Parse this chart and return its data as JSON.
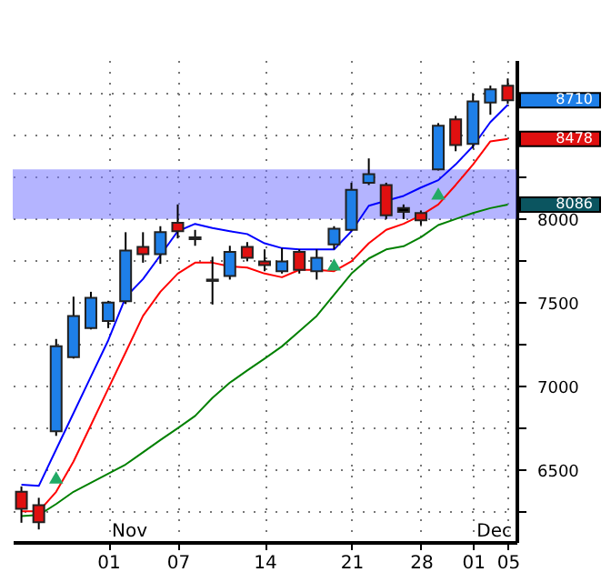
{
  "chart_data": {
    "type": "candlestick",
    "categories": [
      null,
      null,
      null,
      null,
      null,
      "01",
      null,
      null,
      null,
      "07",
      null,
      null,
      null,
      null,
      "14",
      null,
      null,
      null,
      null,
      "21",
      null,
      null,
      null,
      "28",
      null,
      null,
      "01",
      null,
      "05"
    ],
    "ohlc": [
      [
        6370,
        6402,
        6185,
        6268
      ],
      [
        6290,
        6334,
        6145,
        6188
      ],
      [
        6731,
        7283,
        6704,
        7239
      ],
      [
        7174,
        7536,
        7166,
        7421
      ],
      [
        7348,
        7565,
        7340,
        7529
      ],
      [
        7391,
        7511,
        7348,
        7500
      ],
      [
        7508,
        7921,
        7492,
        7812
      ],
      [
        7834,
        7921,
        7739,
        7790
      ],
      [
        7790,
        7957,
        7732,
        7921
      ],
      [
        7978,
        8087,
        7884,
        7927
      ],
      [
        7891,
        7935,
        7840,
        7880
      ],
      [
        7638,
        7775,
        7489,
        7630
      ],
      [
        7660,
        7840,
        7638,
        7804
      ],
      [
        7834,
        7862,
        7747,
        7768
      ],
      [
        7747,
        7818,
        7688,
        7725
      ],
      [
        7688,
        7826,
        7674,
        7747
      ],
      [
        7804,
        7818,
        7674,
        7696
      ],
      [
        7688,
        7818,
        7638,
        7768
      ],
      [
        7848,
        7957,
        7818,
        7942
      ],
      [
        7935,
        8217,
        7927,
        8174
      ],
      [
        8217,
        8362,
        8203,
        8268
      ],
      [
        8203,
        8217,
        8000,
        8022
      ],
      [
        8065,
        8087,
        8000,
        8043
      ],
      [
        8036,
        8051,
        7964,
        7992
      ],
      [
        8297,
        8573,
        8290,
        8558
      ],
      [
        8595,
        8616,
        8405,
        8442
      ],
      [
        8449,
        8747,
        8421,
        8703
      ],
      [
        8696,
        8797,
        8623,
        8775
      ],
      [
        8797,
        8840,
        8688,
        8710
      ]
    ],
    "colors": [
      "#e01010",
      "#e01010",
      "#1e7fe8",
      "#1e7fe8",
      "#1e7fe8",
      "#1e7fe8",
      "#1e7fe8",
      "#e01010",
      "#1e7fe8",
      "#e01010",
      "#000000",
      "#000000",
      "#1e7fe8",
      "#e01010",
      "#e01010",
      "#1e7fe8",
      "#e01010",
      "#1e7fe8",
      "#1e7fe8",
      "#1e7fe8",
      "#1e7fe8",
      "#e01010",
      "#000000",
      "#e01010",
      "#1e7fe8",
      "#e01010",
      "#1e7fe8",
      "#1e7fe8",
      "#e01010"
    ],
    "series": [
      {
        "type": "line",
        "color": "#0000ff",
        "values": [
          6413,
          6405,
          6623,
          6840,
          7058,
          7275,
          7533,
          7641,
          7783,
          7927,
          7971,
          7946,
          7927,
          7910,
          7855,
          7826,
          7818,
          7818,
          7818,
          7927,
          8079,
          8109,
          8138,
          8188,
          8232,
          8326,
          8435,
          8579,
          8682
        ]
      },
      {
        "type": "line",
        "color": "#ff0000",
        "values": [
          6253,
          6253,
          6370,
          6551,
          6768,
          6986,
          7203,
          7421,
          7565,
          7674,
          7739,
          7739,
          7717,
          7710,
          7674,
          7652,
          7696,
          7696,
          7688,
          7747,
          7855,
          7935,
          7971,
          8022,
          8087,
          8203,
          8326,
          8464,
          8478
        ]
      },
      {
        "type": "line",
        "color": "#008000",
        "values": [
          6225,
          6231,
          6297,
          6370,
          6424,
          6478,
          6533,
          6606,
          6679,
          6750,
          6823,
          6931,
          7022,
          7095,
          7166,
          7239,
          7329,
          7421,
          7547,
          7674,
          7764,
          7818,
          7837,
          7891,
          7964,
          8000,
          8036,
          8065,
          8086
        ]
      },
      {
        "type": "scatter",
        "color": "#22aa66",
        "marker": "triangle",
        "values": [
          null,
          null,
          6456,
          null,
          null,
          null,
          null,
          null,
          null,
          null,
          null,
          null,
          null,
          null,
          null,
          null,
          null,
          null,
          7728,
          null,
          null,
          null,
          null,
          null,
          8152,
          null,
          null,
          null,
          null
        ]
      }
    ],
    "ylim": [
      6070,
      8950
    ],
    "yticks": [
      {
        "value": 6250,
        "label": null
      },
      6500,
      {
        "value": 6750,
        "label": null
      },
      7000,
      {
        "value": 7250,
        "label": null
      },
      7500,
      {
        "value": 7750,
        "label": null
      },
      8000,
      {
        "value": 8250,
        "label": null
      },
      {
        "value": 8500,
        "label": null
      },
      {
        "value": 8750,
        "label": null
      }
    ],
    "grid": true,
    "bands": [
      {
        "axis": "y",
        "from": 8000,
        "to": 8297,
        "color": "#7777ff"
      }
    ],
    "annotations": [
      "Nov",
      "Dec",
      "8710",
      "8478",
      "8086"
    ]
  }
}
